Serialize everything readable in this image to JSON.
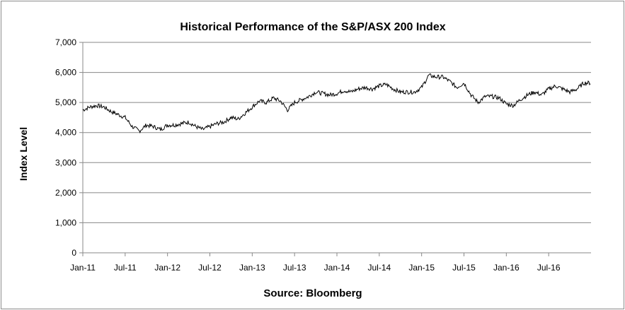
{
  "chart_data": {
    "type": "line",
    "title": "Historical Performance of the S&P/ASX 200 Index",
    "xlabel": "",
    "ylabel": "Index Level",
    "source": "Source: Bloomberg",
    "ylim": [
      0,
      7000
    ],
    "y_ticks": [
      0,
      1000,
      2000,
      3000,
      4000,
      5000,
      6000,
      7000
    ],
    "y_tick_labels": [
      "0",
      "1,000",
      "2,000",
      "3,000",
      "4,000",
      "5,000",
      "6,000",
      "7,000"
    ],
    "x_tick_labels": [
      "Jan-11",
      "Jul-11",
      "Jan-12",
      "Jul-12",
      "Jan-13",
      "Jul-13",
      "Jan-14",
      "Jul-14",
      "Jan-15",
      "Jul-15",
      "Jan-16",
      "Jul-16"
    ],
    "x_range": [
      "2011-01",
      "2016-12"
    ],
    "grid": "horizontal",
    "line_color": "#000000",
    "series": [
      {
        "x": [
          "2011-01",
          "2011-02",
          "2011-03",
          "2011-04",
          "2011-05",
          "2011-06",
          "2011-07",
          "2011-08",
          "2011-09",
          "2011-10",
          "2011-11",
          "2011-12",
          "2012-01",
          "2012-02",
          "2012-03",
          "2012-04",
          "2012-05",
          "2012-06",
          "2012-07",
          "2012-08",
          "2012-09",
          "2012-10",
          "2012-11",
          "2012-12",
          "2013-01",
          "2013-02",
          "2013-03",
          "2013-04",
          "2013-05",
          "2013-06",
          "2013-07",
          "2013-08",
          "2013-09",
          "2013-10",
          "2013-11",
          "2013-12",
          "2014-01",
          "2014-02",
          "2014-03",
          "2014-04",
          "2014-05",
          "2014-06",
          "2014-07",
          "2014-08",
          "2014-09",
          "2014-10",
          "2014-11",
          "2014-12",
          "2015-01",
          "2015-02",
          "2015-03",
          "2015-04",
          "2015-05",
          "2015-06",
          "2015-07",
          "2015-08",
          "2015-09",
          "2015-10",
          "2015-11",
          "2015-12",
          "2016-01",
          "2016-02",
          "2016-03",
          "2016-04",
          "2016-05",
          "2016-06",
          "2016-07",
          "2016-08",
          "2016-09",
          "2016-10",
          "2016-11",
          "2016-12"
        ],
        "values": [
          4750,
          4850,
          4900,
          4850,
          4700,
          4600,
          4500,
          4200,
          4050,
          4250,
          4200,
          4100,
          4250,
          4250,
          4300,
          4350,
          4200,
          4100,
          4200,
          4300,
          4350,
          4500,
          4450,
          4650,
          4850,
          5050,
          5000,
          5150,
          5050,
          4750,
          5000,
          5100,
          5200,
          5350,
          5300,
          5250,
          5300,
          5400,
          5350,
          5450,
          5500,
          5450,
          5550,
          5600,
          5450,
          5350,
          5350,
          5350,
          5500,
          5900,
          5850,
          5850,
          5700,
          5500,
          5650,
          5250,
          5000,
          5200,
          5200,
          5150,
          4950,
          4900,
          5100,
          5250,
          5350,
          5250,
          5450,
          5550,
          5450,
          5350,
          5450,
          5650
        ]
      }
    ]
  }
}
